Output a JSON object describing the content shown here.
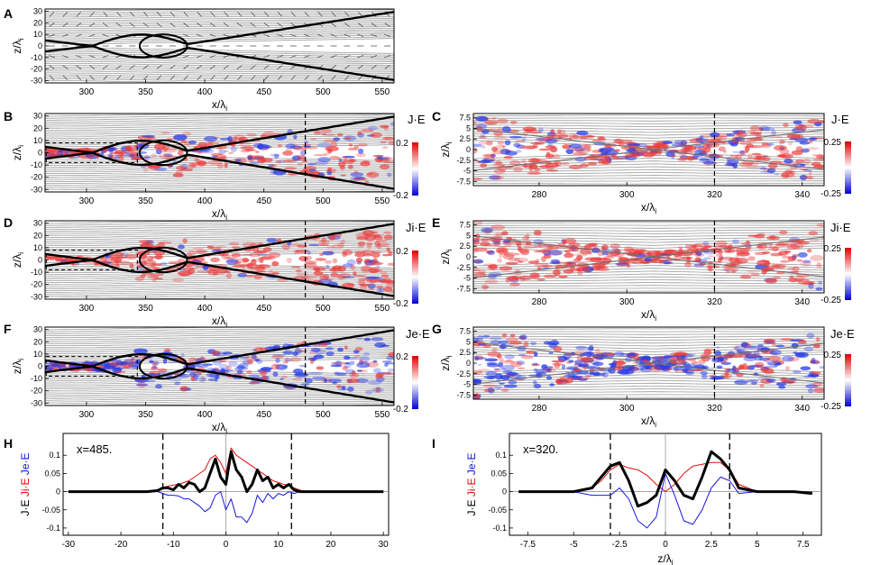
{
  "figure": {
    "panel_letters": [
      "A",
      "B",
      "C",
      "D",
      "E",
      "F",
      "G",
      "H",
      "I"
    ],
    "xlabel_main": "x/λ",
    "xlabel_main_sub": "i",
    "zlabel_main": "z/λ",
    "zlabel_main_sub": "i",
    "colorbar_titles": {
      "B": "J·E",
      "C": "J·E",
      "D": "Ji·E",
      "E": "Ji·E",
      "F": "Je·E",
      "G": "Je·E"
    },
    "colorbar_ticks": {
      "left": [
        "0.2",
        "-0.2"
      ],
      "right": [
        "0.25",
        "-0.25"
      ]
    }
  },
  "chart_data": [
    {
      "id": "A",
      "type": "field-map",
      "title": "",
      "xlabel": "x/λi",
      "ylabel": "z/λi",
      "xlim": [
        265,
        560
      ],
      "ylim": [
        -32,
        32
      ],
      "xticks": [
        300,
        350,
        400,
        450,
        500,
        550
      ],
      "yticks": [
        30,
        20,
        10,
        0,
        -10,
        -20,
        -30
      ]
    },
    {
      "id": "B",
      "type": "heatmap",
      "xlabel": "x/λi",
      "ylabel": "z/λi",
      "xlim": [
        265,
        560
      ],
      "ylim": [
        -32,
        32
      ],
      "xticks": [
        300,
        350,
        400,
        450,
        500,
        550
      ],
      "yticks": [
        30,
        20,
        10,
        0,
        -10,
        -20,
        -30
      ],
      "colorbar": {
        "label": "J·E",
        "range": [
          -0.2,
          0.2
        ]
      },
      "marker_x": 485
    },
    {
      "id": "C",
      "type": "heatmap",
      "xlabel": "x/λi",
      "ylabel": "z/λi",
      "xlim": [
        265,
        345
      ],
      "ylim": [
        -8.5,
        8.5
      ],
      "xticks": [
        280,
        300,
        320,
        340
      ],
      "yticks": [
        7.5,
        5,
        2.5,
        0,
        -2.5,
        -5,
        -7.5
      ],
      "ytick_labels": [
        "7.5",
        "5",
        "2.5",
        "0",
        "-2.5",
        "-5",
        "-7.5"
      ],
      "colorbar": {
        "label": "J·E",
        "range": [
          -0.25,
          0.25
        ]
      },
      "marker_x": 320
    },
    {
      "id": "D",
      "type": "heatmap",
      "xlabel": "x/λi",
      "ylabel": "z/λi",
      "xlim": [
        265,
        560
      ],
      "ylim": [
        -32,
        32
      ],
      "xticks": [
        300,
        350,
        400,
        450,
        500,
        550
      ],
      "yticks": [
        30,
        20,
        10,
        0,
        -10,
        -20,
        -30
      ],
      "colorbar": {
        "label": "Ji·E",
        "range": [
          -0.2,
          0.2
        ]
      },
      "marker_x": 485
    },
    {
      "id": "E",
      "type": "heatmap",
      "xlabel": "x/λi",
      "ylabel": "z/λi",
      "xlim": [
        265,
        345
      ],
      "ylim": [
        -8.5,
        8.5
      ],
      "xticks": [
        280,
        300,
        320,
        340
      ],
      "yticks": [
        7.5,
        5,
        2.5,
        0,
        -2.5,
        -5,
        -7.5
      ],
      "ytick_labels": [
        "7.5",
        "5",
        "2.5",
        "0",
        "-2.5",
        "-5",
        "-7.5"
      ],
      "colorbar": {
        "label": "Ji·E",
        "range": [
          -0.25,
          0.25
        ]
      },
      "marker_x": 320
    },
    {
      "id": "F",
      "type": "heatmap",
      "xlabel": "x/λi",
      "ylabel": "z/λi",
      "xlim": [
        265,
        560
      ],
      "ylim": [
        -32,
        32
      ],
      "xticks": [
        300,
        350,
        400,
        450,
        500,
        550
      ],
      "yticks": [
        30,
        20,
        10,
        0,
        -10,
        -20,
        -30
      ],
      "colorbar": {
        "label": "Je·E",
        "range": [
          -0.2,
          0.2
        ]
      },
      "marker_x": 485
    },
    {
      "id": "G",
      "type": "heatmap",
      "xlabel": "x/λi",
      "ylabel": "z/λi",
      "xlim": [
        265,
        345
      ],
      "ylim": [
        -8.5,
        8.5
      ],
      "xticks": [
        280,
        300,
        320,
        340
      ],
      "yticks": [
        7.5,
        5,
        2.5,
        0,
        -2.5,
        -5,
        -7.5
      ],
      "ytick_labels": [
        "7.5",
        "5",
        "2.5",
        "0",
        "-2.5",
        "-5",
        "-7.5"
      ],
      "colorbar": {
        "label": "Je·E",
        "range": [
          -0.25,
          0.25
        ]
      },
      "marker_x": 320
    },
    {
      "id": "H",
      "type": "line",
      "annotation": "x=485.",
      "xlabel": "",
      "ylabel_parts": [
        "J·E",
        "Ji·E",
        "Je·E"
      ],
      "xlim": [
        -31,
        31
      ],
      "ylim": [
        -0.12,
        0.16
      ],
      "xticks": [
        -30,
        -20,
        -10,
        0,
        10,
        20,
        30
      ],
      "yticks": [
        0.1,
        0.05,
        0,
        -0.05,
        -0.1
      ],
      "ytick_labels": [
        "0.1",
        "0.05",
        "0",
        "-0.05",
        "-0.1"
      ],
      "dashed_x": [
        -12,
        12.5
      ],
      "x": [
        -30,
        -25,
        -20,
        -15,
        -13,
        -12,
        -11,
        -10,
        -9,
        -8,
        -7,
        -6,
        -5,
        -4,
        -3,
        -2,
        -1,
        0,
        1,
        2,
        3,
        4,
        5,
        6,
        7,
        8,
        9,
        10,
        11,
        12,
        13,
        14,
        15,
        20,
        25,
        30
      ],
      "series": [
        {
          "name": "J·E",
          "color": "#000000",
          "values": [
            0,
            0,
            0,
            0,
            0.003,
            0.01,
            0.01,
            0.005,
            0.02,
            0.01,
            0.025,
            0.02,
            0,
            0.01,
            0.05,
            0.09,
            0.04,
            0.02,
            0.11,
            0.06,
            0.04,
            0,
            0.02,
            0.06,
            0.03,
            0.04,
            0.01,
            0.02,
            0.01,
            0.02,
            0.005,
            0,
            0,
            0,
            0,
            0
          ]
        },
        {
          "name": "Ji·E",
          "color": "#e01010",
          "values": [
            0,
            0,
            0,
            0,
            0.002,
            0.012,
            0.015,
            0.018,
            0.02,
            0.025,
            0.03,
            0.04,
            0.05,
            0.06,
            0.09,
            0.1,
            0.08,
            0.05,
            0.12,
            0.1,
            0.09,
            0.08,
            0.07,
            0.06,
            0.05,
            0.04,
            0.03,
            0.025,
            0.02,
            0.018,
            0.01,
            0.005,
            0,
            0,
            0,
            0
          ]
        },
        {
          "name": "Je·E",
          "color": "#1818e0",
          "values": [
            0,
            0,
            0,
            0,
            0,
            -0.005,
            -0.01,
            -0.01,
            -0.012,
            -0.02,
            -0.02,
            -0.03,
            -0.04,
            -0.055,
            -0.045,
            -0.01,
            0,
            -0.05,
            -0.02,
            -0.07,
            -0.07,
            -0.085,
            -0.06,
            -0.01,
            -0.03,
            -0.005,
            -0.02,
            -0.005,
            -0.01,
            0,
            -0.005,
            0,
            0,
            0,
            0,
            0
          ]
        }
      ]
    },
    {
      "id": "I",
      "type": "line",
      "annotation": "x=320.",
      "xlabel": "z/λi",
      "ylabel_parts": [
        "J·E",
        "Ji·E",
        "Je·E"
      ],
      "xlim": [
        -8.5,
        8.5
      ],
      "ylim": [
        -0.12,
        0.16
      ],
      "xticks": [
        -7.5,
        -5,
        -2.5,
        0,
        2.5,
        5,
        7.5
      ],
      "xtick_labels": [
        "-7.5",
        "-5",
        "-2.5",
        "0",
        "2.5",
        "5",
        "7.5"
      ],
      "yticks": [
        0.1,
        0.05,
        0,
        -0.05,
        -0.1
      ],
      "ytick_labels": [
        "0.1",
        "0.05",
        "0",
        "-0.05",
        "-0.1"
      ],
      "dashed_x": [
        -3,
        3.5
      ],
      "x": [
        -8,
        -7,
        -6,
        -5,
        -4,
        -3.5,
        -3,
        -2.5,
        -2,
        -1.5,
        -1,
        -0.5,
        0,
        0.5,
        1,
        1.5,
        2,
        2.5,
        3,
        3.5,
        4,
        5,
        6,
        7,
        8
      ],
      "series": [
        {
          "name": "J·E",
          "color": "#000000",
          "values": [
            0,
            0,
            0,
            0,
            0.01,
            0.04,
            0.07,
            0.08,
            0.03,
            -0.04,
            -0.03,
            -0.01,
            0.06,
            0.03,
            -0.01,
            -0.02,
            0.04,
            0.11,
            0.09,
            0.06,
            0.01,
            0,
            0,
            0,
            -0.005
          ]
        },
        {
          "name": "Ji·E",
          "color": "#e01010",
          "values": [
            0,
            0,
            0,
            0,
            0.01,
            0.03,
            0.06,
            0.075,
            0.065,
            0.06,
            0.045,
            0.02,
            0,
            0.02,
            0.05,
            0.07,
            0.075,
            0.08,
            0.08,
            0.06,
            0.02,
            0,
            0,
            0,
            0
          ]
        },
        {
          "name": "Je·E",
          "color": "#1818e0",
          "values": [
            0,
            0,
            0,
            0,
            -0.01,
            -0.01,
            -0.01,
            0.01,
            -0.02,
            -0.08,
            -0.1,
            -0.07,
            0.05,
            -0.01,
            -0.08,
            -0.09,
            -0.05,
            0.01,
            0.04,
            0.03,
            -0.005,
            0,
            0,
            0,
            -0.005
          ]
        }
      ]
    }
  ]
}
